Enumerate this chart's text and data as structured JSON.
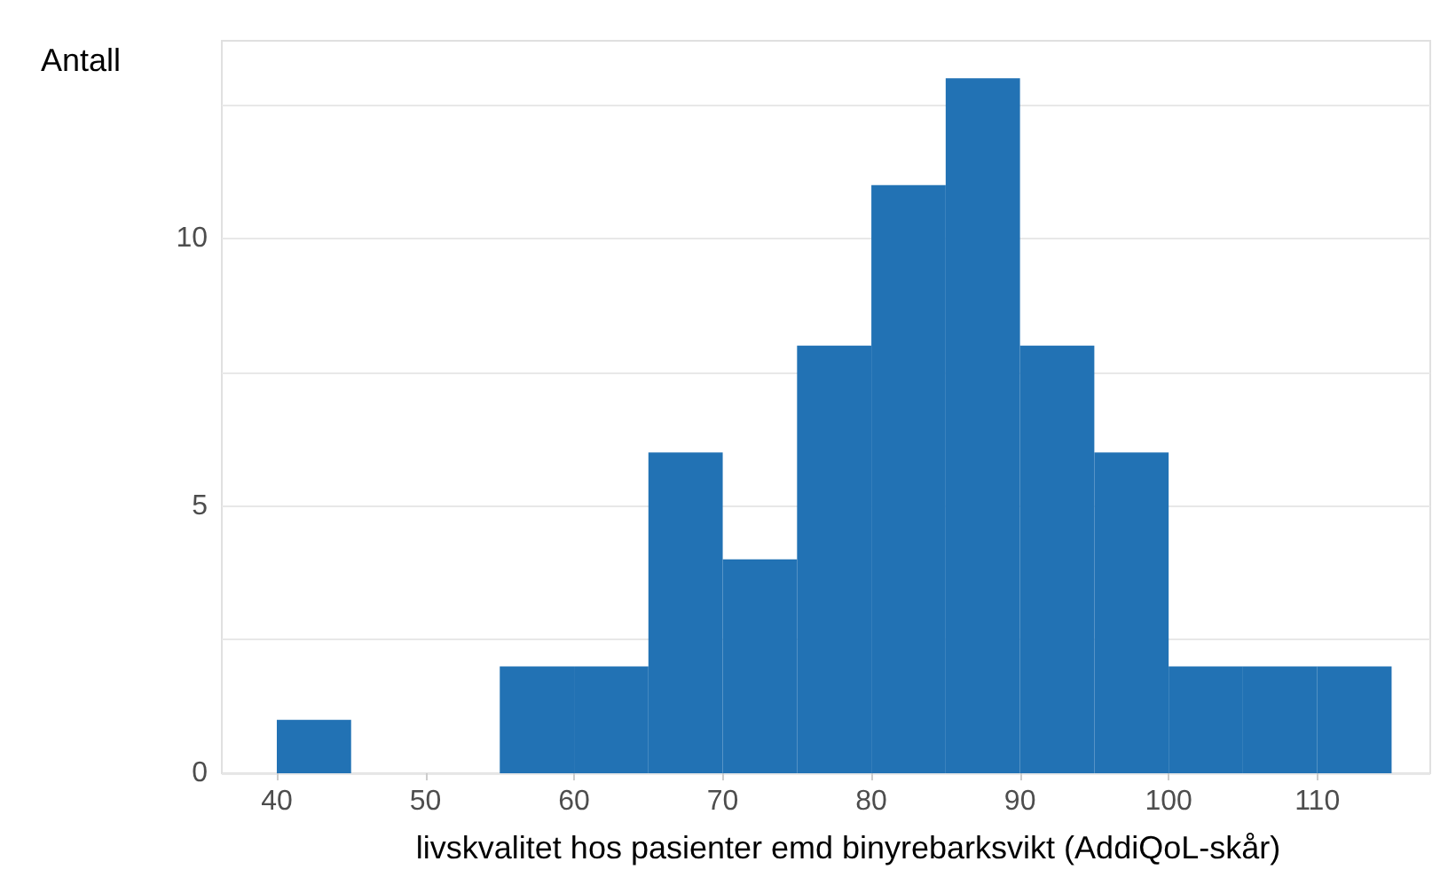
{
  "chart_data": {
    "type": "histogram",
    "xlabel": "livskvalitet hos pasienter emd binyrebarksvikt (AddiQoL-skår)",
    "ylabel": "Antall",
    "bins": [
      40,
      45,
      50,
      55,
      60,
      65,
      70,
      75,
      80,
      85,
      90,
      95,
      100,
      105,
      110,
      115
    ],
    "values": [
      1,
      0,
      0,
      2,
      2,
      6,
      4,
      8,
      11,
      13,
      8,
      6,
      2,
      2,
      2
    ],
    "color": "#2272b4",
    "xlim": [
      36.3,
      117.6
    ],
    "ylim": [
      0,
      13.7
    ],
    "xticks": [
      40,
      50,
      60,
      70,
      80,
      90,
      100,
      110
    ],
    "yticks": [
      0,
      {
        "value": 2.5,
        "label": null
      },
      5,
      {
        "value": 7.5,
        "label": null
      },
      10,
      {
        "value": 12.5,
        "label": null
      }
    ],
    "grid": "y"
  }
}
